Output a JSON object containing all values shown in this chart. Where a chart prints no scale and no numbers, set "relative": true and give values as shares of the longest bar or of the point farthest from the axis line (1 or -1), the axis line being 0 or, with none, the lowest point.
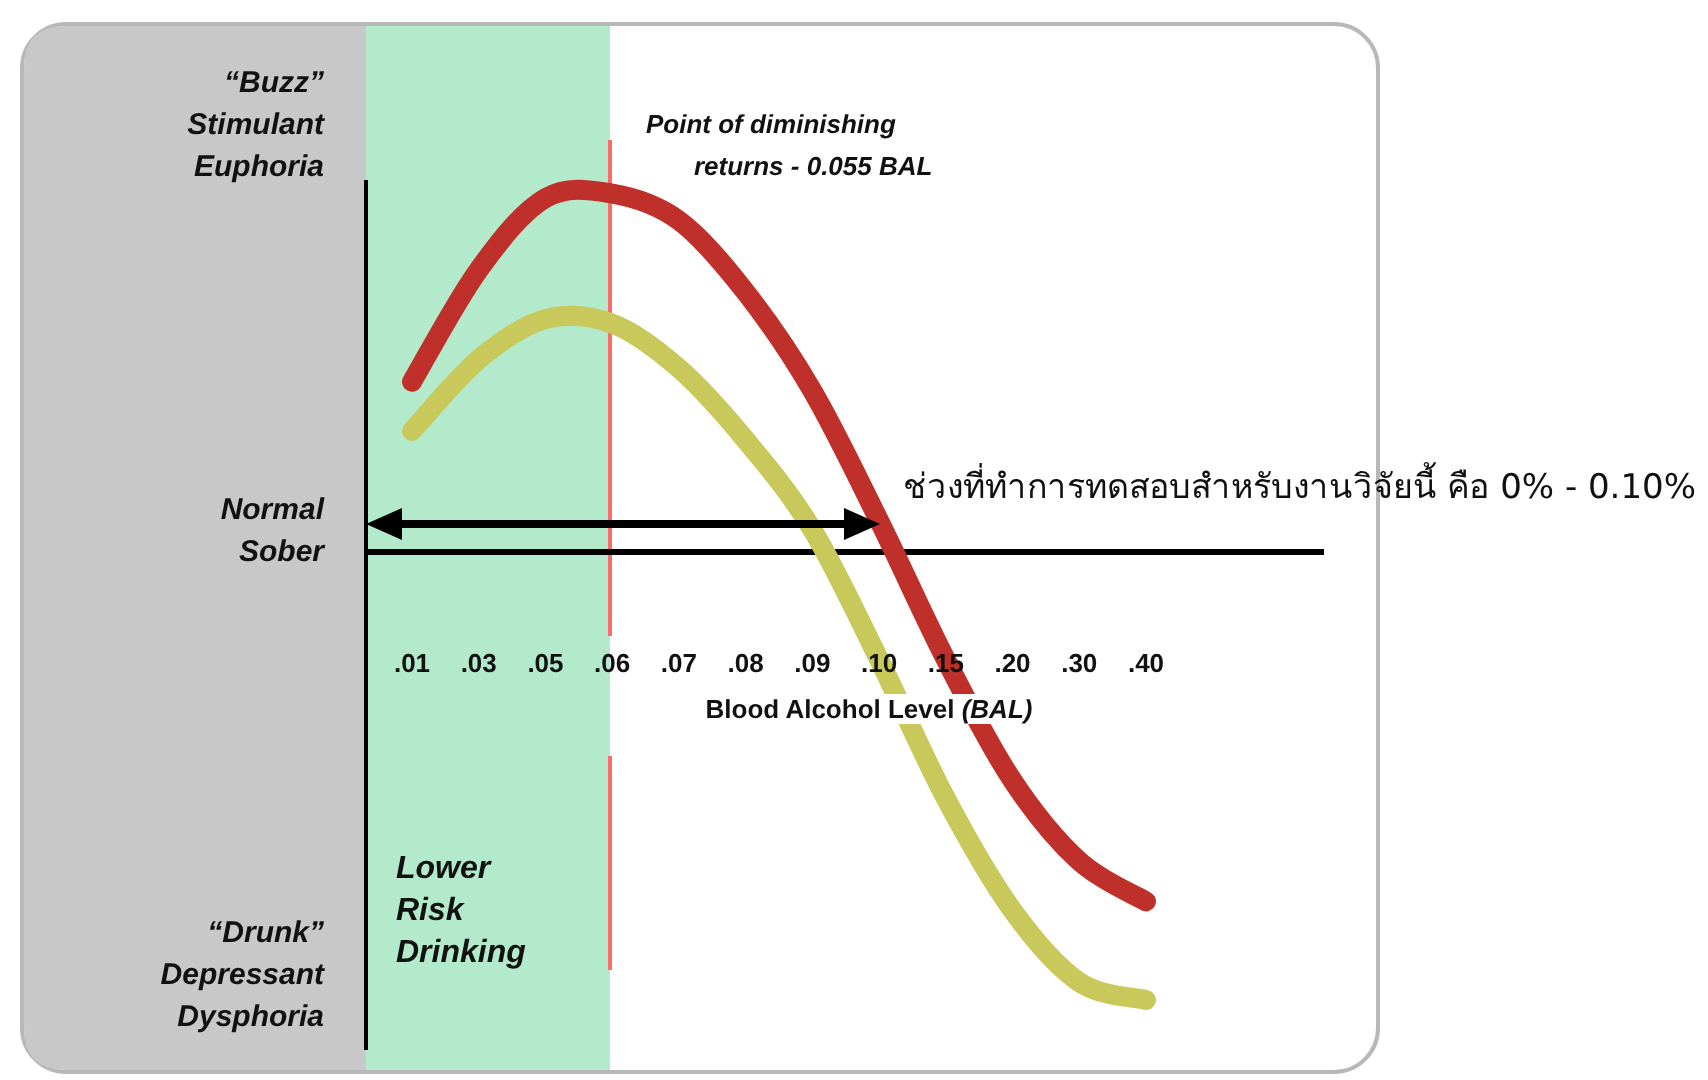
{
  "chart_data": {
    "type": "line",
    "relative": true,
    "categories": [
      ".01",
      ".03",
      ".05",
      ".06",
      ".07",
      ".08",
      ".09",
      ".10",
      ".15",
      ".20",
      ".30",
      ".40"
    ],
    "xlabel": "Blood Alcohol Level *(BAL)*",
    "series": [
      {
        "color": "#c0302a",
        "values": [
          0.38,
          0.63,
          0.79,
          0.8,
          0.74,
          0.58,
          0.36,
          0.07,
          -0.24,
          -0.51,
          -0.69,
          -0.78
        ]
      },
      {
        "color": "#c9c85a",
        "values": [
          0.27,
          0.43,
          0.52,
          0.51,
          0.41,
          0.25,
          0.05,
          -0.24,
          -0.55,
          -0.8,
          -0.96,
          -1
        ]
      }
    ],
    "annotations": [
      "“Buzz” Stimulant Euphoria",
      "Normal Sober",
      "“Drunk” Depressant Dysphoria",
      "Lower Risk Drinking",
      "Point of diminishing returns - 0.055 BAL",
      "ช่วงที่ทำการทดสอบสำหรับงานวิจัยนี้ คือ 0% - 0.10%"
    ]
  }
}
